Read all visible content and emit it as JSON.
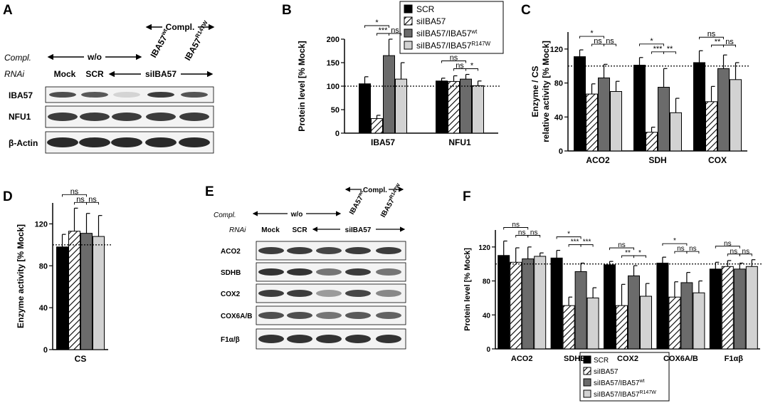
{
  "panel_letters": {
    "a": "A",
    "b": "B",
    "c": "C",
    "d": "D",
    "e": "E",
    "f": "F"
  },
  "colors": {
    "scr": "#000000",
    "si": "#ffffff",
    "wt": "#6b6b6b",
    "mut": "#d2d2d2",
    "axis": "#000000"
  },
  "legend": {
    "scr": "SCR",
    "si": "siIBA57",
    "wt_main": "siIBA57/IBA57",
    "wt_sup": "wt",
    "mut_main": "siIBA57/IBA57",
    "mut_sup": "R147W"
  },
  "blot_a": {
    "compl_top": "Compl.",
    "wt_main": "IBA57",
    "wt_sup": "wt",
    "mut_main": "IBA57",
    "mut_sup": "R147W",
    "compl_label": "Compl.",
    "wo": "w/o",
    "rnai_label": "RNAi",
    "mock": "Mock",
    "scr": "SCR",
    "si": "siIBA57",
    "rows": [
      "IBA57",
      "NFU1",
      "β-Actin"
    ]
  },
  "blot_e": {
    "compl_top": "Compl.",
    "wt_main": "IBA57",
    "wt_sup": "wt",
    "mut_main": "IBA57",
    "mut_sup": "R147W",
    "compl_label": "Compl.",
    "wo": "w/o",
    "rnai_label": "RNAi",
    "mock": "Mock",
    "scr": "SCR",
    "si": "siIBA57",
    "rows": [
      "ACO2",
      "SDHB",
      "COX2",
      "COX6A/B",
      "F1α/β"
    ]
  },
  "chart_data": [
    {
      "id": "B",
      "type": "bar",
      "categories": [
        "IBA57",
        "NFU1"
      ],
      "series": [
        {
          "name": "SCR",
          "values": [
            105,
            111
          ],
          "errors": [
            15,
            6
          ]
        },
        {
          "name": "siIBA57",
          "values": [
            31,
            110
          ],
          "errors": [
            7,
            12
          ]
        },
        {
          "name": "siIBA57/IBA57wt",
          "values": [
            165,
            115
          ],
          "errors": [
            35,
            10
          ]
        },
        {
          "name": "siIBA57/IBA57R147W",
          "values": [
            115,
            101
          ],
          "errors": [
            35,
            10
          ]
        }
      ],
      "ylabel": "Protein level [% Mock]",
      "ylim": [
        0,
        200
      ],
      "yticks": [
        0,
        50,
        100,
        150,
        200
      ],
      "reference_line": 100,
      "significance": [
        {
          "cat": 0,
          "from": 0,
          "to": 2,
          "label": "*",
          "tier": 0
        },
        {
          "cat": 0,
          "from": 1,
          "to": 2,
          "label": "***",
          "tier": 1
        },
        {
          "cat": 0,
          "from": 2,
          "to": 3,
          "label": "ns",
          "tier": 1
        },
        {
          "cat": 1,
          "from": 0,
          "to": 2,
          "label": "ns",
          "tier": 0
        },
        {
          "cat": 1,
          "from": 1,
          "to": 2,
          "label": "ns",
          "tier": 1
        },
        {
          "cat": 1,
          "from": 2,
          "to": 3,
          "label": "*",
          "tier": 1
        }
      ]
    },
    {
      "id": "C",
      "type": "bar",
      "categories": [
        "ACO2",
        "SDH",
        "COX"
      ],
      "series": [
        {
          "name": "SCR",
          "values": [
            111,
            101,
            104
          ],
          "errors": [
            8,
            9,
            14
          ]
        },
        {
          "name": "siIBA57",
          "values": [
            67,
            22,
            58
          ],
          "errors": [
            12,
            6,
            18
          ]
        },
        {
          "name": "siIBA57/IBA57wt",
          "values": [
            86,
            75,
            97
          ],
          "errors": [
            16,
            22,
            16
          ]
        },
        {
          "name": "siIBA57/IBA57R147W",
          "values": [
            70,
            45,
            84
          ],
          "errors": [
            12,
            17,
            20
          ]
        }
      ],
      "ylabel": "Enzyme / CS relative activity [% Mock]",
      "ylim": [
        0,
        140
      ],
      "yticks": [
        0,
        40,
        80,
        120
      ],
      "reference_line": 100,
      "significance": [
        {
          "cat": 0,
          "from": 0,
          "to": 2,
          "label": "*",
          "tier": 0
        },
        {
          "cat": 0,
          "from": 1,
          "to": 2,
          "label": "ns",
          "tier": 1
        },
        {
          "cat": 0,
          "from": 2,
          "to": 3,
          "label": "ns",
          "tier": 1
        },
        {
          "cat": 1,
          "from": 0,
          "to": 2,
          "label": "*",
          "tier": 0
        },
        {
          "cat": 1,
          "from": 1,
          "to": 2,
          "label": "***",
          "tier": 1
        },
        {
          "cat": 1,
          "from": 2,
          "to": 3,
          "label": "**",
          "tier": 1
        },
        {
          "cat": 2,
          "from": 0,
          "to": 2,
          "label": "ns",
          "tier": 0
        },
        {
          "cat": 2,
          "from": 1,
          "to": 2,
          "label": "**",
          "tier": 1
        },
        {
          "cat": 2,
          "from": 2,
          "to": 3,
          "label": "ns",
          "tier": 1
        }
      ]
    },
    {
      "id": "D",
      "type": "bar",
      "categories": [
        "CS"
      ],
      "series": [
        {
          "name": "SCR",
          "values": [
            98
          ],
          "errors": [
            12
          ]
        },
        {
          "name": "siIBA57",
          "values": [
            113
          ],
          "errors": [
            22
          ]
        },
        {
          "name": "siIBA57/IBA57wt",
          "values": [
            111
          ],
          "errors": [
            19
          ]
        },
        {
          "name": "siIBA57/IBA57R147W",
          "values": [
            108
          ],
          "errors": [
            20
          ]
        }
      ],
      "ylabel": "Enzyme activity [% Mock]",
      "ylim": [
        0,
        140
      ],
      "yticks": [
        0,
        40,
        80,
        120
      ],
      "reference_line": 100,
      "significance": [
        {
          "cat": 0,
          "from": 0,
          "to": 2,
          "label": "ns",
          "tier": 0
        },
        {
          "cat": 0,
          "from": 1,
          "to": 2,
          "label": "ns",
          "tier": 1
        },
        {
          "cat": 0,
          "from": 2,
          "to": 3,
          "label": "ns",
          "tier": 1
        }
      ]
    },
    {
      "id": "F",
      "type": "bar",
      "categories": [
        "ACO2",
        "SDHB",
        "COX2",
        "COX6A/B",
        "F1αβ"
      ],
      "series": [
        {
          "name": "SCR",
          "values": [
            110,
            107,
            99,
            101,
            94
          ],
          "errors": [
            17,
            9,
            4,
            7,
            8
          ]
        },
        {
          "name": "siIBA57",
          "values": [
            102,
            51,
            51,
            61,
            97
          ],
          "errors": [
            17,
            10,
            25,
            18,
            7
          ]
        },
        {
          "name": "siIBA57/IBA57wt",
          "values": [
            106,
            91,
            86,
            78,
            94
          ],
          "errors": [
            14,
            10,
            12,
            12,
            7
          ]
        },
        {
          "name": "siIBA57/IBA57R147W",
          "values": [
            109,
            60,
            62,
            66,
            97
          ],
          "errors": [
            4,
            12,
            15,
            14,
            8
          ]
        }
      ],
      "ylabel": "Protein level [% Mock]",
      "ylim": [
        0,
        140
      ],
      "yticks": [
        0,
        40,
        80,
        120
      ],
      "reference_line": 100,
      "significance": [
        {
          "cat": 0,
          "from": 0,
          "to": 2,
          "label": "ns",
          "tier": 0
        },
        {
          "cat": 0,
          "from": 1,
          "to": 2,
          "label": "ns",
          "tier": 1
        },
        {
          "cat": 0,
          "from": 2,
          "to": 3,
          "label": "ns",
          "tier": 1
        },
        {
          "cat": 1,
          "from": 0,
          "to": 2,
          "label": "*",
          "tier": 0
        },
        {
          "cat": 1,
          "from": 1,
          "to": 2,
          "label": "***",
          "tier": 1
        },
        {
          "cat": 1,
          "from": 2,
          "to": 3,
          "label": "***",
          "tier": 1
        },
        {
          "cat": 2,
          "from": 0,
          "to": 2,
          "label": "ns",
          "tier": 0
        },
        {
          "cat": 2,
          "from": 1,
          "to": 2,
          "label": "**",
          "tier": 1
        },
        {
          "cat": 2,
          "from": 2,
          "to": 3,
          "label": "*",
          "tier": 1
        },
        {
          "cat": 3,
          "from": 0,
          "to": 2,
          "label": "*",
          "tier": 0
        },
        {
          "cat": 3,
          "from": 1,
          "to": 2,
          "label": "ns",
          "tier": 1
        },
        {
          "cat": 3,
          "from": 2,
          "to": 3,
          "label": "ns",
          "tier": 1
        },
        {
          "cat": 4,
          "from": 0,
          "to": 2,
          "label": "ns",
          "tier": 0
        },
        {
          "cat": 4,
          "from": 1,
          "to": 2,
          "label": "ns",
          "tier": 1
        },
        {
          "cat": 4,
          "from": 2,
          "to": 3,
          "label": "ns",
          "tier": 1
        }
      ]
    }
  ]
}
